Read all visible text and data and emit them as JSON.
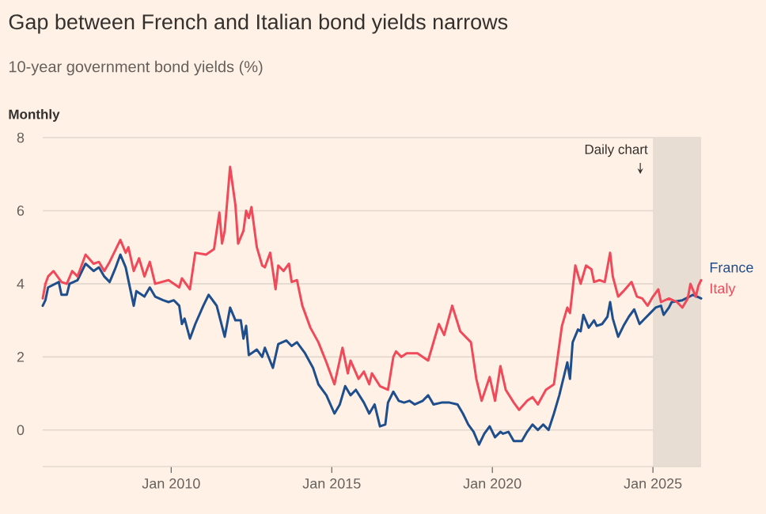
{
  "chart_data": {
    "type": "line",
    "title": "Gap between French and Italian bond yields narrows",
    "subtitle": "10-year government bond yields (%)",
    "annotations": [
      "Monthly"
    ],
    "xlim": [
      "2006-01",
      "2026-07"
    ],
    "xticks": [
      {
        "value": "2010-01",
        "label": "Jan 2010"
      },
      {
        "value": "2015-01",
        "label": "Jan 2015"
      },
      {
        "value": "2020-01",
        "label": "Jan 2020"
      },
      {
        "value": "2025-01",
        "label": "Jan 2025"
      }
    ],
    "ylim": [
      -1,
      8
    ],
    "yticks": [
      0,
      2,
      4,
      6,
      8
    ],
    "grid": "y",
    "bands": [
      {
        "axis": "x",
        "from": "2025-01",
        "to": "2026-07",
        "label": "Daily chart",
        "color": "#e8ddd2"
      }
    ],
    "series": [
      {
        "name": "France",
        "color": "#1f4e8c",
        "x": [
          "2006-01",
          "2006-02",
          "2006-03",
          "2006-07",
          "2006-08",
          "2006-10",
          "2006-11",
          "2007-02",
          "2007-05",
          "2007-08",
          "2007-10",
          "2007-12",
          "2008-02",
          "2008-04",
          "2008-06",
          "2008-08",
          "2008-11",
          "2008-12",
          "2009-03",
          "2009-05",
          "2009-07",
          "2009-10",
          "2009-12",
          "2010-02",
          "2010-04",
          "2010-05",
          "2010-06",
          "2010-08",
          "2010-10",
          "2011-01",
          "2011-03",
          "2011-05",
          "2011-06",
          "2011-09",
          "2011-11",
          "2012-01",
          "2012-03",
          "2012-04",
          "2012-05",
          "2012-06",
          "2012-07",
          "2012-09",
          "2012-11",
          "2012-12",
          "2013-03",
          "2013-05",
          "2013-08",
          "2013-10",
          "2013-12",
          "2014-03",
          "2014-06",
          "2014-08",
          "2014-11",
          "2015-02",
          "2015-04",
          "2015-06",
          "2015-08",
          "2015-10",
          "2016-01",
          "2016-03",
          "2016-05",
          "2016-07",
          "2016-09",
          "2016-10",
          "2016-12",
          "2017-02",
          "2017-04",
          "2017-06",
          "2017-08",
          "2017-11",
          "2018-01",
          "2018-03",
          "2018-06",
          "2018-09",
          "2018-12",
          "2019-02",
          "2019-04",
          "2019-06",
          "2019-08",
          "2019-10",
          "2019-12",
          "2020-02",
          "2020-04",
          "2020-05",
          "2020-07",
          "2020-09",
          "2020-12",
          "2021-02",
          "2021-04",
          "2021-06",
          "2021-08",
          "2021-10",
          "2021-12",
          "2022-02",
          "2022-04",
          "2022-05",
          "2022-06",
          "2022-07",
          "2022-09",
          "2022-10",
          "2022-11",
          "2023-01",
          "2023-03",
          "2023-04",
          "2023-06",
          "2023-08",
          "2023-09",
          "2023-10",
          "2023-12",
          "2024-02",
          "2024-04",
          "2024-06",
          "2024-08",
          "2024-10",
          "2024-12",
          "2025-02",
          "2025-04",
          "2025-05",
          "2025-07",
          "2025-08",
          "2025-12",
          "2026-04",
          "2026-07"
        ],
        "values": [
          3.4,
          3.55,
          3.9,
          4.05,
          3.7,
          3.7,
          4.0,
          4.1,
          4.55,
          4.35,
          4.45,
          4.2,
          4.05,
          4.4,
          4.8,
          4.45,
          3.4,
          3.8,
          3.65,
          3.9,
          3.65,
          3.55,
          3.5,
          3.55,
          3.4,
          2.9,
          3.05,
          2.5,
          2.9,
          3.4,
          3.7,
          3.5,
          3.4,
          2.55,
          3.35,
          3.0,
          3.0,
          2.5,
          2.85,
          2.05,
          2.1,
          2.2,
          2.0,
          2.25,
          1.7,
          2.35,
          2.45,
          2.3,
          2.4,
          2.1,
          1.7,
          1.25,
          0.95,
          0.45,
          0.7,
          1.2,
          0.95,
          1.1,
          0.75,
          0.45,
          0.7,
          0.1,
          0.15,
          0.75,
          1.05,
          0.8,
          0.75,
          0.8,
          0.7,
          0.8,
          0.95,
          0.7,
          0.75,
          0.75,
          0.7,
          0.45,
          0.15,
          -0.05,
          -0.4,
          -0.1,
          0.1,
          -0.2,
          -0.05,
          -0.1,
          -0.05,
          -0.3,
          -0.3,
          -0.05,
          0.15,
          0.0,
          0.15,
          0.0,
          0.45,
          0.95,
          1.55,
          1.85,
          1.4,
          2.4,
          2.75,
          2.7,
          3.15,
          2.8,
          3.0,
          2.85,
          2.9,
          3.1,
          3.5,
          3.05,
          2.55,
          2.85,
          3.1,
          3.3,
          2.9,
          3.05,
          3.2,
          3.35,
          3.4,
          3.15,
          3.35,
          3.5,
          3.55,
          3.7,
          3.6
        ]
      },
      {
        "name": "Italy",
        "color": "#f04a5a",
        "x": [
          "2006-01",
          "2006-02",
          "2006-03",
          "2006-05",
          "2006-08",
          "2006-10",
          "2006-12",
          "2007-02",
          "2007-05",
          "2007-08",
          "2007-10",
          "2007-12",
          "2008-02",
          "2008-06",
          "2008-08",
          "2008-09",
          "2008-11",
          "2009-01",
          "2009-03",
          "2009-05",
          "2009-07",
          "2009-12",
          "2010-04",
          "2010-05",
          "2010-08",
          "2010-10",
          "2011-02",
          "2011-05",
          "2011-07",
          "2011-08",
          "2011-09",
          "2011-11",
          "2012-01",
          "2012-02",
          "2012-04",
          "2012-05",
          "2012-06",
          "2012-07",
          "2012-09",
          "2012-11",
          "2012-12",
          "2013-02",
          "2013-04",
          "2013-05",
          "2013-07",
          "2013-09",
          "2013-10",
          "2013-12",
          "2014-02",
          "2014-05",
          "2014-08",
          "2014-11",
          "2015-02",
          "2015-05",
          "2015-07",
          "2015-08",
          "2015-11",
          "2016-01",
          "2016-03",
          "2016-04",
          "2016-07",
          "2016-10",
          "2016-12",
          "2017-01",
          "2017-03",
          "2017-05",
          "2017-09",
          "2018-01",
          "2018-05",
          "2018-07",
          "2018-10",
          "2019-01",
          "2019-05",
          "2019-07",
          "2019-09",
          "2019-12",
          "2020-02",
          "2020-04",
          "2020-06",
          "2020-09",
          "2020-11",
          "2021-02",
          "2021-04",
          "2021-06",
          "2021-09",
          "2021-12",
          "2022-03",
          "2022-05",
          "2022-06",
          "2022-08",
          "2022-10",
          "2022-12",
          "2023-02",
          "2023-03",
          "2023-05",
          "2023-07",
          "2023-09",
          "2023-10",
          "2023-12",
          "2024-02",
          "2024-05",
          "2024-07",
          "2024-09",
          "2024-11",
          "2025-01",
          "2025-03",
          "2025-04",
          "2025-07",
          "2025-10",
          "2025-12",
          "2026-02",
          "2026-03",
          "2026-05",
          "2026-06",
          "2026-07"
        ],
        "values": [
          3.6,
          4.0,
          4.2,
          4.35,
          4.05,
          4.0,
          4.35,
          4.2,
          4.8,
          4.55,
          4.6,
          4.35,
          4.6,
          5.2,
          4.85,
          5.0,
          4.35,
          4.7,
          4.2,
          4.6,
          4.0,
          4.1,
          3.9,
          4.15,
          3.85,
          4.85,
          4.8,
          4.95,
          5.95,
          5.1,
          5.45,
          7.2,
          6.15,
          5.1,
          5.45,
          6.0,
          5.8,
          6.1,
          5.0,
          4.5,
          4.45,
          4.85,
          3.85,
          4.5,
          4.35,
          4.55,
          4.05,
          4.1,
          3.4,
          2.8,
          2.4,
          1.85,
          1.25,
          2.25,
          1.55,
          1.9,
          1.4,
          1.6,
          1.25,
          1.55,
          1.2,
          1.1,
          2.0,
          2.15,
          2.0,
          2.1,
          2.1,
          1.9,
          2.9,
          2.6,
          3.4,
          2.7,
          2.4,
          1.4,
          0.8,
          1.45,
          0.8,
          1.75,
          1.1,
          0.75,
          0.55,
          0.8,
          0.9,
          0.7,
          1.1,
          1.25,
          2.85,
          3.35,
          3.2,
          4.5,
          4.0,
          4.5,
          4.4,
          4.05,
          4.1,
          4.05,
          4.85,
          4.2,
          3.65,
          3.8,
          4.05,
          3.65,
          3.6,
          3.4,
          3.65,
          3.85,
          3.5,
          3.6,
          3.5,
          3.35,
          3.6,
          4.0,
          3.65,
          3.95,
          4.1
        ]
      }
    ]
  }
}
